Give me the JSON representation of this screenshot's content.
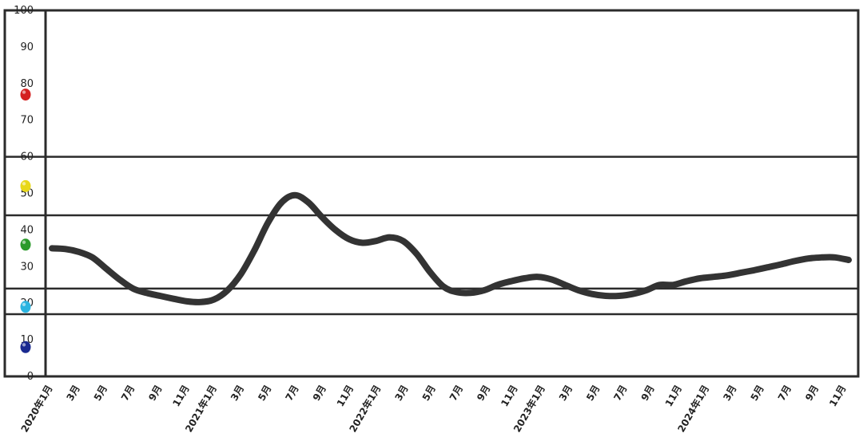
{
  "chart_data": {
    "type": "line",
    "title": "",
    "xlabel": "",
    "ylabel": "",
    "ylim": [
      0,
      100
    ],
    "y_ticks": [
      "0",
      "10",
      "20",
      "30",
      "40",
      "50",
      "60",
      "70",
      "80",
      "90",
      "100"
    ],
    "x_tick_labels": [
      "2020年1月",
      "3月",
      "5月",
      "7月",
      "9月",
      "11月",
      "2021年1月",
      "3月",
      "5月",
      "7月",
      "9月",
      "11月",
      "2022年1月",
      "3月",
      "5月",
      "7月",
      "9月",
      "11月",
      "2023年1月",
      "3月",
      "5月",
      "7月",
      "9月",
      "11月",
      "2024年1月",
      "3月",
      "5月",
      "7月",
      "9月",
      "11月"
    ],
    "band_lines": [
      60,
      44,
      24,
      17
    ],
    "band_markers": [
      {
        "value": 77,
        "color": "#d42020"
      },
      {
        "value": 52,
        "color": "#e8d81a"
      },
      {
        "value": 36,
        "color": "#2a9a2a"
      },
      {
        "value": 19,
        "color": "#2ab4e0"
      },
      {
        "value": 8,
        "color": "#1a2a90"
      }
    ],
    "series": [
      {
        "color": "#333333",
        "values": [
          35.0,
          34.8,
          34.0,
          32.5,
          29.5,
          26.5,
          24.0,
          22.8,
          22.0,
          21.2,
          20.5,
          20.3,
          21.0,
          23.5,
          28.0,
          34.5,
          42.0,
          47.5,
          49.5,
          47.5,
          43.5,
          40.0,
          37.5,
          36.5,
          37.0,
          38.0,
          37.0,
          33.5,
          28.5,
          24.5,
          23.0,
          22.8,
          23.5,
          25.0,
          26.0,
          26.8,
          27.2,
          26.5,
          25.0,
          23.5,
          22.5,
          22.0,
          22.0,
          22.5,
          23.5,
          25.0,
          25.0,
          26.0,
          26.8,
          27.2,
          27.6,
          28.3,
          29.0,
          29.8,
          30.6,
          31.5,
          32.2,
          32.5,
          32.5,
          31.8
        ]
      }
    ]
  }
}
